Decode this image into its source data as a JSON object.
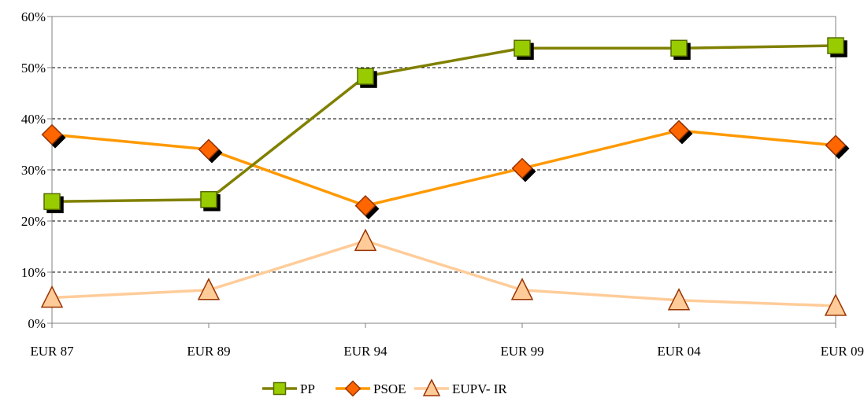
{
  "chart_data": {
    "type": "line",
    "categories": [
      "EUR 87",
      "EUR 89",
      "EUR 94",
      "EUR 99",
      "EUR 04",
      "EUR 09"
    ],
    "ylim": [
      0,
      60
    ],
    "y_ticks": [
      0,
      10,
      20,
      30,
      40,
      50,
      60
    ],
    "y_tick_labels": [
      "0%",
      "10%",
      "20%",
      "30%",
      "40%",
      "50%",
      "60%"
    ],
    "y_unit": "%",
    "grid": "horizontal dashed",
    "legend_position": "bottom",
    "series": [
      {
        "name": "PP",
        "marker": "square",
        "line_color": "#808000",
        "marker_color": "#99CC00",
        "values": [
          23.8,
          24.2,
          48.3,
          53.8,
          53.8,
          54.3
        ]
      },
      {
        "name": "PSOE",
        "marker": "diamond",
        "line_color": "#FF9900",
        "marker_color": "#FF6600",
        "values": [
          36.9,
          34.0,
          23.0,
          30.3,
          37.7,
          34.8
        ]
      },
      {
        "name": "EUPV- IR",
        "marker": "triangle",
        "line_color": "#FFCC99",
        "marker_color": "#FFCC99",
        "values": [
          5.0,
          6.5,
          16.1,
          6.5,
          4.5,
          3.4
        ]
      }
    ]
  }
}
